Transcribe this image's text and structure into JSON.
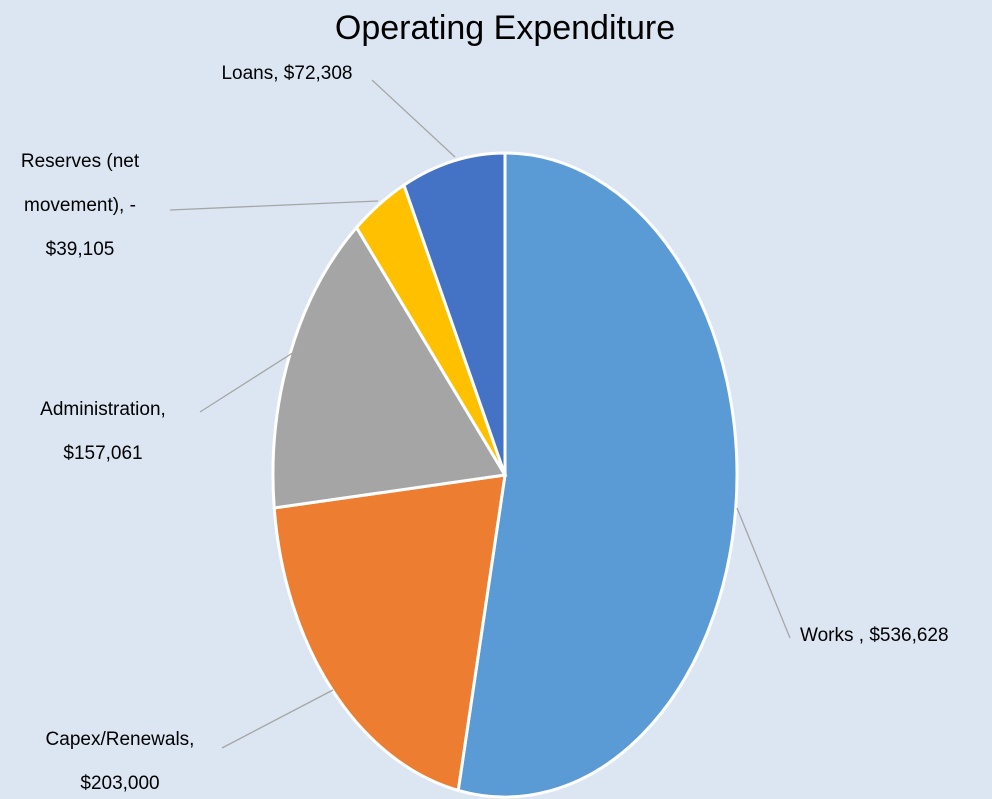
{
  "chart_data": {
    "type": "pie",
    "title": "Operating Expenditure",
    "values": [
      536628,
      203000,
      157061,
      -39105,
      72308
    ],
    "value_labels": [
      [
        "Works , $536,628"
      ],
      [
        "Capex/Renewals,",
        "$203,000"
      ],
      [
        "Administration,",
        "$157,061"
      ],
      [
        "Reserves (net",
        "movement), -",
        "$39,105"
      ],
      [
        "Loans, $72,308"
      ]
    ],
    "colors": [
      "#5b9bd5",
      "#ed7d31",
      "#a5a5a5",
      "#ffc000",
      "#4472c4"
    ]
  }
}
